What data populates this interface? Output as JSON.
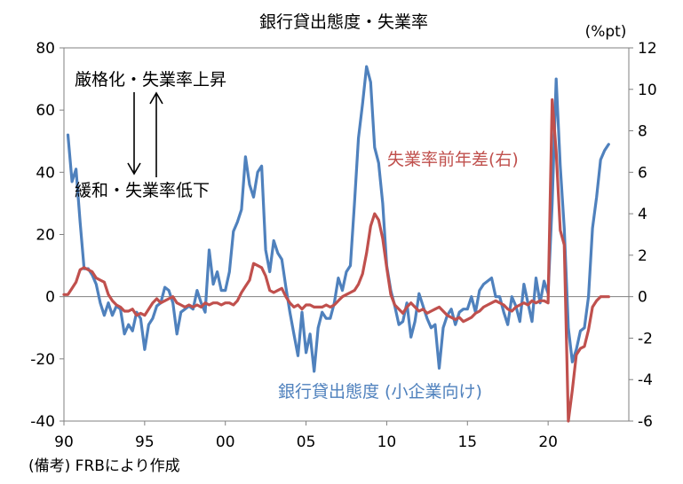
{
  "chart_data": {
    "type": "line",
    "title": "銀行貸出態度・失業率",
    "y2_unit": "(%pt)",
    "source_note": "(備考) FRBにより作成",
    "annotations": {
      "up_label": "厳格化・失業率上昇",
      "down_label": "緩和・失業率低下",
      "series_red_label": "失業率前年差(右)",
      "series_blue_label": "銀行貸出態度 (小企業向け)"
    },
    "x_ticks": [
      "90",
      "95",
      "00",
      "05",
      "10",
      "15",
      "20"
    ],
    "x_tick_years": [
      1990,
      1995,
      2000,
      2005,
      2010,
      2015,
      2020
    ],
    "xlim": [
      1990,
      2025
    ],
    "y_left": {
      "lim": [
        -40,
        80
      ],
      "ticks": [
        -40,
        -20,
        0,
        20,
        40,
        60,
        80
      ]
    },
    "y_right": {
      "lim": [
        -6,
        12
      ],
      "ticks": [
        -6,
        -4,
        -2,
        0,
        2,
        4,
        6,
        8,
        10,
        12
      ]
    },
    "series": [
      {
        "name": "銀行貸出態度 (小企業向け)",
        "axis": "left",
        "color": "#4f81bd",
        "points": [
          [
            1990.25,
            52
          ],
          [
            1990.5,
            37
          ],
          [
            1990.75,
            41
          ],
          [
            1991.0,
            24
          ],
          [
            1991.25,
            9
          ],
          [
            1991.5,
            9
          ],
          [
            1991.75,
            7
          ],
          [
            1992.0,
            4
          ],
          [
            1992.25,
            -2
          ],
          [
            1992.5,
            -6
          ],
          [
            1992.75,
            -2
          ],
          [
            1993.0,
            -6
          ],
          [
            1993.25,
            -3
          ],
          [
            1993.5,
            -4
          ],
          [
            1993.75,
            -12
          ],
          [
            1994.0,
            -9
          ],
          [
            1994.25,
            -11
          ],
          [
            1994.5,
            -5
          ],
          [
            1994.75,
            -7
          ],
          [
            1995.0,
            -17
          ],
          [
            1995.25,
            -9
          ],
          [
            1995.5,
            -7
          ],
          [
            1995.75,
            -3
          ],
          [
            1996.0,
            -2
          ],
          [
            1996.25,
            3
          ],
          [
            1996.5,
            2
          ],
          [
            1996.75,
            -2
          ],
          [
            1997.0,
            -12
          ],
          [
            1997.25,
            -5
          ],
          [
            1997.5,
            -4
          ],
          [
            1997.75,
            -3
          ],
          [
            1998.0,
            -4
          ],
          [
            1998.25,
            2
          ],
          [
            1998.5,
            -2
          ],
          [
            1998.75,
            -5
          ],
          [
            1999.0,
            15
          ],
          [
            1999.25,
            4
          ],
          [
            1999.5,
            8
          ],
          [
            1999.75,
            2
          ],
          [
            2000.0,
            2
          ],
          [
            2000.25,
            8
          ],
          [
            2000.5,
            21
          ],
          [
            2000.75,
            24
          ],
          [
            2001.0,
            28
          ],
          [
            2001.25,
            45
          ],
          [
            2001.5,
            36
          ],
          [
            2001.75,
            32
          ],
          [
            2002.0,
            40
          ],
          [
            2002.25,
            42
          ],
          [
            2002.5,
            15
          ],
          [
            2002.75,
            8
          ],
          [
            2003.0,
            18
          ],
          [
            2003.25,
            14
          ],
          [
            2003.5,
            12
          ],
          [
            2003.75,
            3
          ],
          [
            2004.0,
            -5
          ],
          [
            2004.25,
            -12
          ],
          [
            2004.5,
            -19
          ],
          [
            2004.75,
            -5
          ],
          [
            2005.0,
            -18
          ],
          [
            2005.25,
            -12
          ],
          [
            2005.5,
            -24
          ],
          [
            2005.75,
            -10
          ],
          [
            2006.0,
            -5
          ],
          [
            2006.25,
            -7
          ],
          [
            2006.5,
            -7
          ],
          [
            2006.75,
            -2
          ],
          [
            2007.0,
            6
          ],
          [
            2007.25,
            2
          ],
          [
            2007.5,
            8
          ],
          [
            2007.75,
            10
          ],
          [
            2008.0,
            30
          ],
          [
            2008.25,
            51
          ],
          [
            2008.5,
            62
          ],
          [
            2008.75,
            74
          ],
          [
            2009.0,
            69
          ],
          [
            2009.25,
            48
          ],
          [
            2009.5,
            43
          ],
          [
            2009.75,
            30
          ],
          [
            2010.0,
            10
          ],
          [
            2010.25,
            2
          ],
          [
            2010.5,
            -3
          ],
          [
            2010.75,
            -9
          ],
          [
            2011.0,
            -8
          ],
          [
            2011.25,
            -2
          ],
          [
            2011.5,
            -13
          ],
          [
            2011.75,
            -8
          ],
          [
            2012.0,
            1
          ],
          [
            2012.25,
            -3
          ],
          [
            2012.5,
            -7
          ],
          [
            2012.75,
            -10
          ],
          [
            2013.0,
            -9
          ],
          [
            2013.25,
            -23
          ],
          [
            2013.5,
            -10
          ],
          [
            2013.75,
            -6
          ],
          [
            2014.0,
            -4
          ],
          [
            2014.25,
            -9
          ],
          [
            2014.5,
            -5
          ],
          [
            2014.75,
            -4
          ],
          [
            2015.0,
            -4
          ],
          [
            2015.25,
            0
          ],
          [
            2015.5,
            -5
          ],
          [
            2015.75,
            2
          ],
          [
            2016.0,
            4
          ],
          [
            2016.25,
            5
          ],
          [
            2016.5,
            6
          ],
          [
            2016.75,
            0
          ],
          [
            2017.0,
            0
          ],
          [
            2017.25,
            -5
          ],
          [
            2017.5,
            -9
          ],
          [
            2017.75,
            0
          ],
          [
            2018.0,
            -3
          ],
          [
            2018.25,
            -8
          ],
          [
            2018.5,
            4
          ],
          [
            2018.75,
            -2
          ],
          [
            2019.0,
            -8
          ],
          [
            2019.25,
            6
          ],
          [
            2019.5,
            -2
          ],
          [
            2019.75,
            5
          ],
          [
            2020.0,
            1
          ],
          [
            2020.25,
            30
          ],
          [
            2020.5,
            70
          ],
          [
            2020.75,
            42
          ],
          [
            2021.0,
            22
          ],
          [
            2021.25,
            -10
          ],
          [
            2021.5,
            -21
          ],
          [
            2021.75,
            -17
          ],
          [
            2022.0,
            -11
          ],
          [
            2022.25,
            -10
          ],
          [
            2022.5,
            0
          ],
          [
            2022.75,
            22
          ],
          [
            2023.0,
            32
          ],
          [
            2023.25,
            44
          ],
          [
            2023.5,
            47
          ],
          [
            2023.75,
            49
          ]
        ]
      },
      {
        "name": "失業率前年差(右)",
        "axis": "right",
        "color": "#c0504d",
        "points": [
          [
            1990.0,
            0.1
          ],
          [
            1990.25,
            0.1
          ],
          [
            1990.5,
            0.4
          ],
          [
            1990.75,
            0.7
          ],
          [
            1991.0,
            1.3
          ],
          [
            1991.25,
            1.4
          ],
          [
            1991.5,
            1.3
          ],
          [
            1991.75,
            1.2
          ],
          [
            1992.0,
            0.9
          ],
          [
            1992.25,
            0.8
          ],
          [
            1992.5,
            0.7
          ],
          [
            1992.75,
            0.1
          ],
          [
            1993.0,
            -0.2
          ],
          [
            1993.25,
            -0.4
          ],
          [
            1993.5,
            -0.5
          ],
          [
            1993.75,
            -0.7
          ],
          [
            1994.0,
            -0.7
          ],
          [
            1994.25,
            -0.6
          ],
          [
            1994.5,
            -0.9
          ],
          [
            1994.75,
            -0.8
          ],
          [
            1995.0,
            -0.9
          ],
          [
            1995.25,
            -0.6
          ],
          [
            1995.5,
            -0.3
          ],
          [
            1995.75,
            -0.1
          ],
          [
            1996.0,
            -0.3
          ],
          [
            1996.25,
            -0.2
          ],
          [
            1996.5,
            -0.1
          ],
          [
            1996.75,
            0.0
          ],
          [
            1997.0,
            -0.3
          ],
          [
            1997.25,
            -0.4
          ],
          [
            1997.5,
            -0.5
          ],
          [
            1997.75,
            -0.4
          ],
          [
            1998.0,
            -0.5
          ],
          [
            1998.25,
            -0.4
          ],
          [
            1998.5,
            -0.5
          ],
          [
            1998.75,
            -0.3
          ],
          [
            1999.0,
            -0.4
          ],
          [
            1999.25,
            -0.3
          ],
          [
            1999.5,
            -0.3
          ],
          [
            1999.75,
            -0.4
          ],
          [
            2000.0,
            -0.3
          ],
          [
            2000.25,
            -0.3
          ],
          [
            2000.5,
            -0.4
          ],
          [
            2000.75,
            -0.2
          ],
          [
            2001.0,
            0.2
          ],
          [
            2001.25,
            0.5
          ],
          [
            2001.5,
            0.8
          ],
          [
            2001.75,
            1.6
          ],
          [
            2002.0,
            1.5
          ],
          [
            2002.25,
            1.4
          ],
          [
            2002.5,
            1.0
          ],
          [
            2002.75,
            0.3
          ],
          [
            2003.0,
            0.2
          ],
          [
            2003.25,
            0.3
          ],
          [
            2003.5,
            0.4
          ],
          [
            2003.75,
            0.0
          ],
          [
            2004.0,
            -0.3
          ],
          [
            2004.25,
            -0.5
          ],
          [
            2004.5,
            -0.4
          ],
          [
            2004.75,
            -0.6
          ],
          [
            2005.0,
            -0.4
          ],
          [
            2005.25,
            -0.4
          ],
          [
            2005.5,
            -0.5
          ],
          [
            2005.75,
            -0.5
          ],
          [
            2006.0,
            -0.5
          ],
          [
            2006.25,
            -0.4
          ],
          [
            2006.5,
            -0.5
          ],
          [
            2006.75,
            -0.4
          ],
          [
            2007.0,
            -0.2
          ],
          [
            2007.25,
            0.0
          ],
          [
            2007.5,
            0.1
          ],
          [
            2007.75,
            0.2
          ],
          [
            2008.0,
            0.3
          ],
          [
            2008.25,
            0.6
          ],
          [
            2008.5,
            1.1
          ],
          [
            2008.75,
            2.1
          ],
          [
            2009.0,
            3.4
          ],
          [
            2009.25,
            4.0
          ],
          [
            2009.5,
            3.7
          ],
          [
            2009.75,
            2.8
          ],
          [
            2010.0,
            1.4
          ],
          [
            2010.25,
            0.1
          ],
          [
            2010.5,
            -0.4
          ],
          [
            2010.75,
            -0.6
          ],
          [
            2011.0,
            -0.8
          ],
          [
            2011.25,
            -0.5
          ],
          [
            2011.5,
            -0.3
          ],
          [
            2011.75,
            -0.5
          ],
          [
            2012.0,
            -0.7
          ],
          [
            2012.25,
            -0.6
          ],
          [
            2012.5,
            -0.8
          ],
          [
            2012.75,
            -0.7
          ],
          [
            2013.0,
            -0.6
          ],
          [
            2013.25,
            -0.5
          ],
          [
            2013.5,
            -0.7
          ],
          [
            2013.75,
            -0.9
          ],
          [
            2014.0,
            -1.0
          ],
          [
            2014.25,
            -1.1
          ],
          [
            2014.5,
            -1.0
          ],
          [
            2014.75,
            -1.2
          ],
          [
            2015.0,
            -1.1
          ],
          [
            2015.25,
            -1.0
          ],
          [
            2015.5,
            -0.8
          ],
          [
            2015.75,
            -0.7
          ],
          [
            2016.0,
            -0.5
          ],
          [
            2016.25,
            -0.4
          ],
          [
            2016.5,
            -0.3
          ],
          [
            2016.75,
            -0.2
          ],
          [
            2017.0,
            -0.3
          ],
          [
            2017.25,
            -0.4
          ],
          [
            2017.5,
            -0.6
          ],
          [
            2017.75,
            -0.7
          ],
          [
            2018.0,
            -0.5
          ],
          [
            2018.25,
            -0.4
          ],
          [
            2018.5,
            -0.3
          ],
          [
            2018.75,
            -0.4
          ],
          [
            2019.0,
            -0.2
          ],
          [
            2019.25,
            -0.3
          ],
          [
            2019.5,
            -0.2
          ],
          [
            2019.75,
            -0.2
          ],
          [
            2020.0,
            -0.3
          ],
          [
            2020.25,
            9.5
          ],
          [
            2020.5,
            7.0
          ],
          [
            2020.75,
            3.2
          ],
          [
            2021.0,
            2.5
          ],
          [
            2021.25,
            -6.0
          ],
          [
            2021.5,
            -4.5
          ],
          [
            2021.75,
            -2.8
          ],
          [
            2022.0,
            -2.5
          ],
          [
            2022.25,
            -2.4
          ],
          [
            2022.5,
            -1.6
          ],
          [
            2022.75,
            -0.5
          ],
          [
            2023.0,
            -0.2
          ],
          [
            2023.25,
            0.0
          ],
          [
            2023.5,
            0.0
          ],
          [
            2023.75,
            0.0
          ]
        ]
      }
    ]
  }
}
